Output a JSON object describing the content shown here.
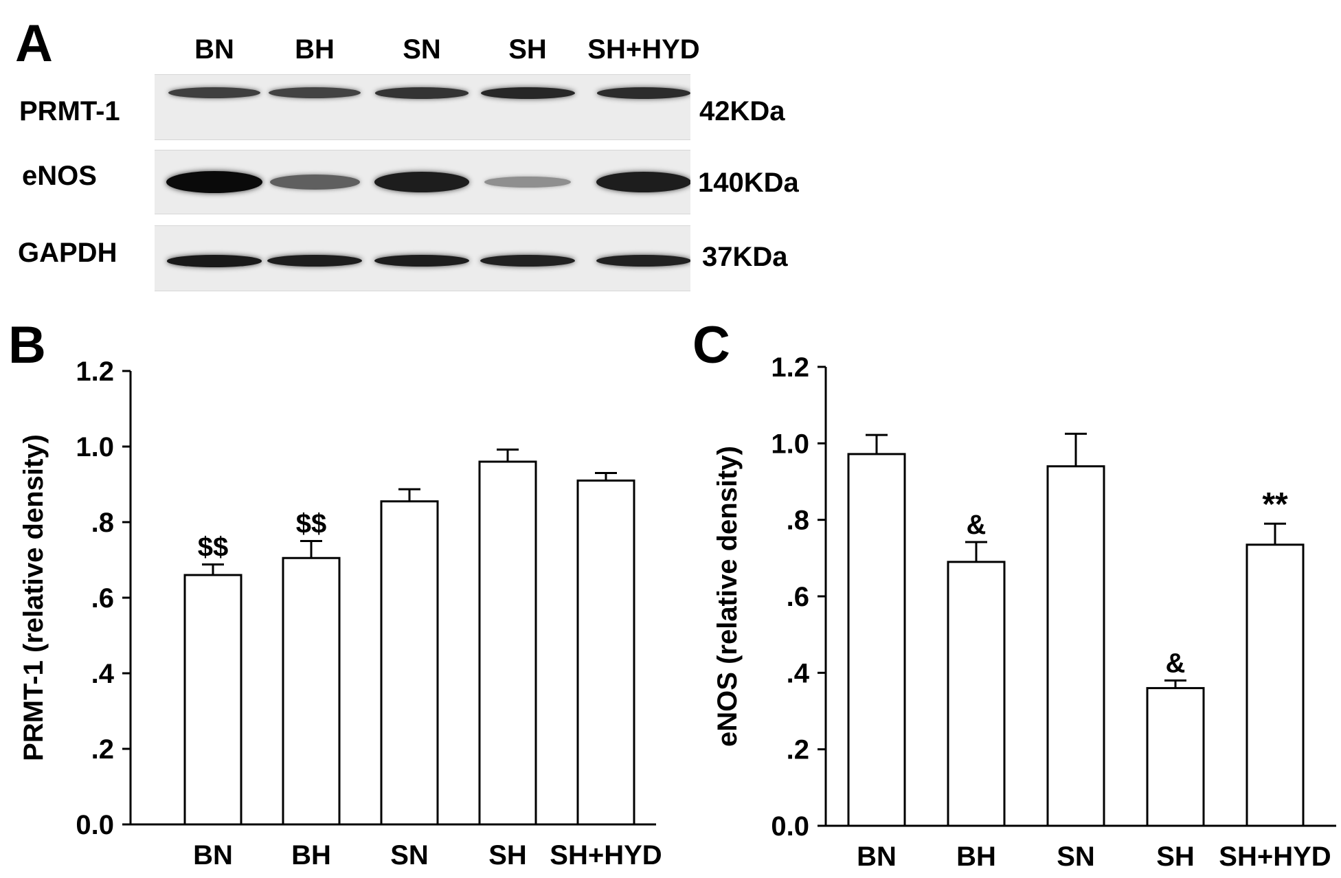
{
  "panel_a": {
    "letter": "A",
    "lanes": [
      "BN",
      "BH",
      "SN",
      "SH",
      "SH+HYD"
    ],
    "rows": [
      {
        "label": "PRMT-1",
        "kda": "42KDa",
        "intensity": [
          0.72,
          0.7,
          0.78,
          0.85,
          0.82
        ]
      },
      {
        "label": "eNOS",
        "kda": "140KDa",
        "intensity": [
          1.0,
          0.55,
          0.9,
          0.3,
          0.9
        ]
      },
      {
        "label": "GAPDH",
        "kda": "37KDa",
        "intensity": [
          0.92,
          0.9,
          0.9,
          0.88,
          0.88
        ]
      }
    ]
  },
  "chart_data": [
    {
      "panel": "B",
      "type": "bar",
      "categories": [
        "BN",
        "BH",
        "SN",
        "SH",
        "SH+HYD"
      ],
      "values": [
        0.66,
        0.705,
        0.855,
        0.96,
        0.91
      ],
      "errors": [
        0.028,
        0.045,
        0.032,
        0.032,
        0.02
      ],
      "annotations": [
        "$$",
        "$$",
        "",
        "",
        ""
      ],
      "ylabel": "PRMT-1 (relative density)",
      "ylim": [
        0,
        1.2
      ],
      "yticks": [
        0,
        0.2,
        0.4,
        0.6,
        0.8,
        1.0,
        1.2
      ],
      "ytick_labels": [
        "0.0",
        ".2",
        ".4",
        ".6",
        ".8",
        "1.0",
        "1.2"
      ]
    },
    {
      "panel": "C",
      "type": "bar",
      "categories": [
        "BN",
        "BH",
        "SN",
        "SH",
        "SH+HYD"
      ],
      "values": [
        0.972,
        0.69,
        0.94,
        0.36,
        0.735
      ],
      "errors": [
        0.05,
        0.052,
        0.085,
        0.02,
        0.055
      ],
      "annotations": [
        "",
        "&",
        "",
        "&",
        "**"
      ],
      "ylabel": "eNOS (relative density)",
      "ylim": [
        0,
        1.2
      ],
      "yticks": [
        0,
        0.2,
        0.4,
        0.6,
        0.8,
        1.0,
        1.2
      ],
      "ytick_labels": [
        "0.0",
        ".2",
        ".4",
        ".6",
        ".8",
        "1.0",
        "1.2"
      ]
    }
  ]
}
